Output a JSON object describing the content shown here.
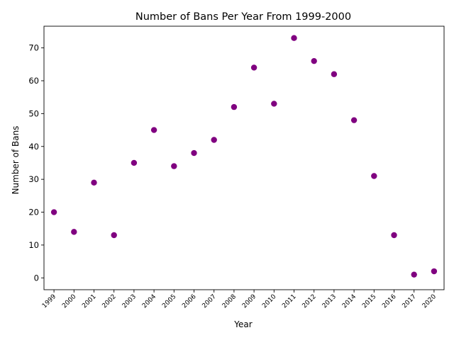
{
  "chart_data": {
    "type": "scatter",
    "title": "Number of Bans Per Year From 1999-2000",
    "xlabel": "Year",
    "ylabel": "Number of Bans",
    "categories": [
      "1999",
      "2000",
      "2001",
      "2002",
      "2003",
      "2004",
      "2005",
      "2006",
      "2007",
      "2008",
      "2009",
      "2010",
      "2011",
      "2012",
      "2013",
      "2014",
      "2015",
      "2016",
      "2017",
      "2020"
    ],
    "values": [
      20,
      14,
      29,
      13,
      35,
      45,
      34,
      38,
      42,
      52,
      64,
      53,
      73,
      66,
      62,
      48,
      31,
      13,
      1,
      2
    ],
    "yticks": [
      0,
      10,
      20,
      30,
      40,
      50,
      60,
      70
    ],
    "ylim": [
      -3.6,
      76.6
    ],
    "grid": false,
    "legend": "none",
    "marker_color": "#800080"
  }
}
